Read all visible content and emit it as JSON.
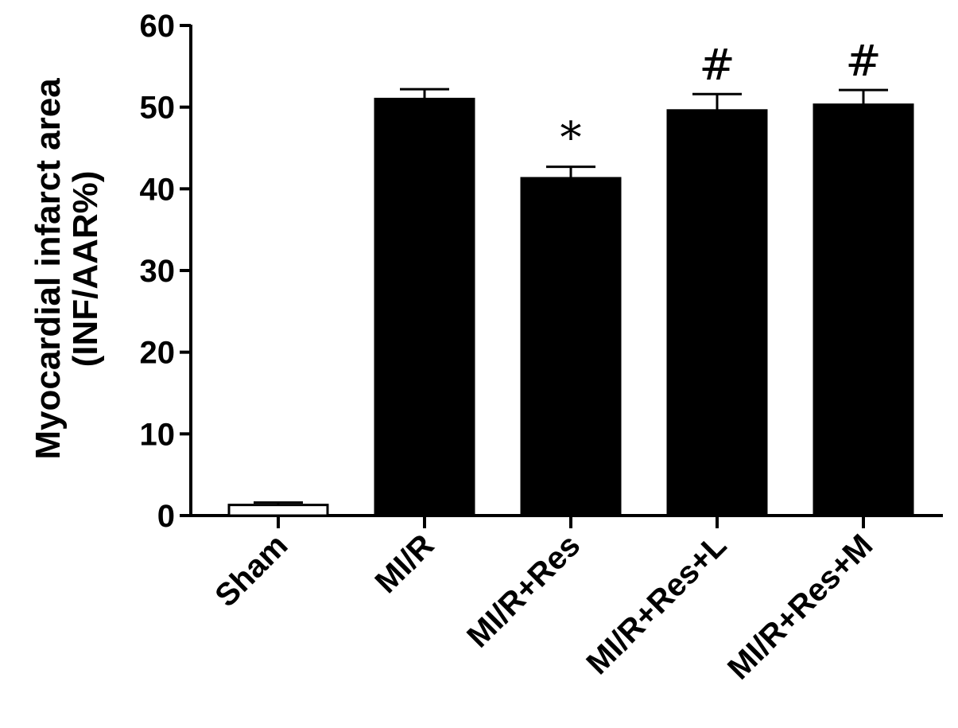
{
  "chart_data": {
    "type": "bar",
    "title": "",
    "xlabel": "",
    "ylabel_lines": [
      "Myocardial infarct area",
      "(INF/AAR%)"
    ],
    "ylim": [
      0,
      60
    ],
    "yticks": [
      0,
      10,
      20,
      30,
      40,
      50,
      60
    ],
    "grid": false,
    "legend": "none",
    "categories": [
      "Sham",
      "MI/R",
      "MI/R+Res",
      "MI/R+Res+L",
      "MI/R+Res+M"
    ],
    "values": [
      1.3,
      51.0,
      41.3,
      49.6,
      50.3
    ],
    "errors": [
      0.3,
      1.2,
      1.4,
      2.0,
      1.8
    ],
    "annotations": [
      "",
      "",
      "*",
      "#",
      "#"
    ],
    "bar_fills": [
      "#ffffff",
      "#000000",
      "#000000",
      "#000000",
      "#000000"
    ]
  }
}
